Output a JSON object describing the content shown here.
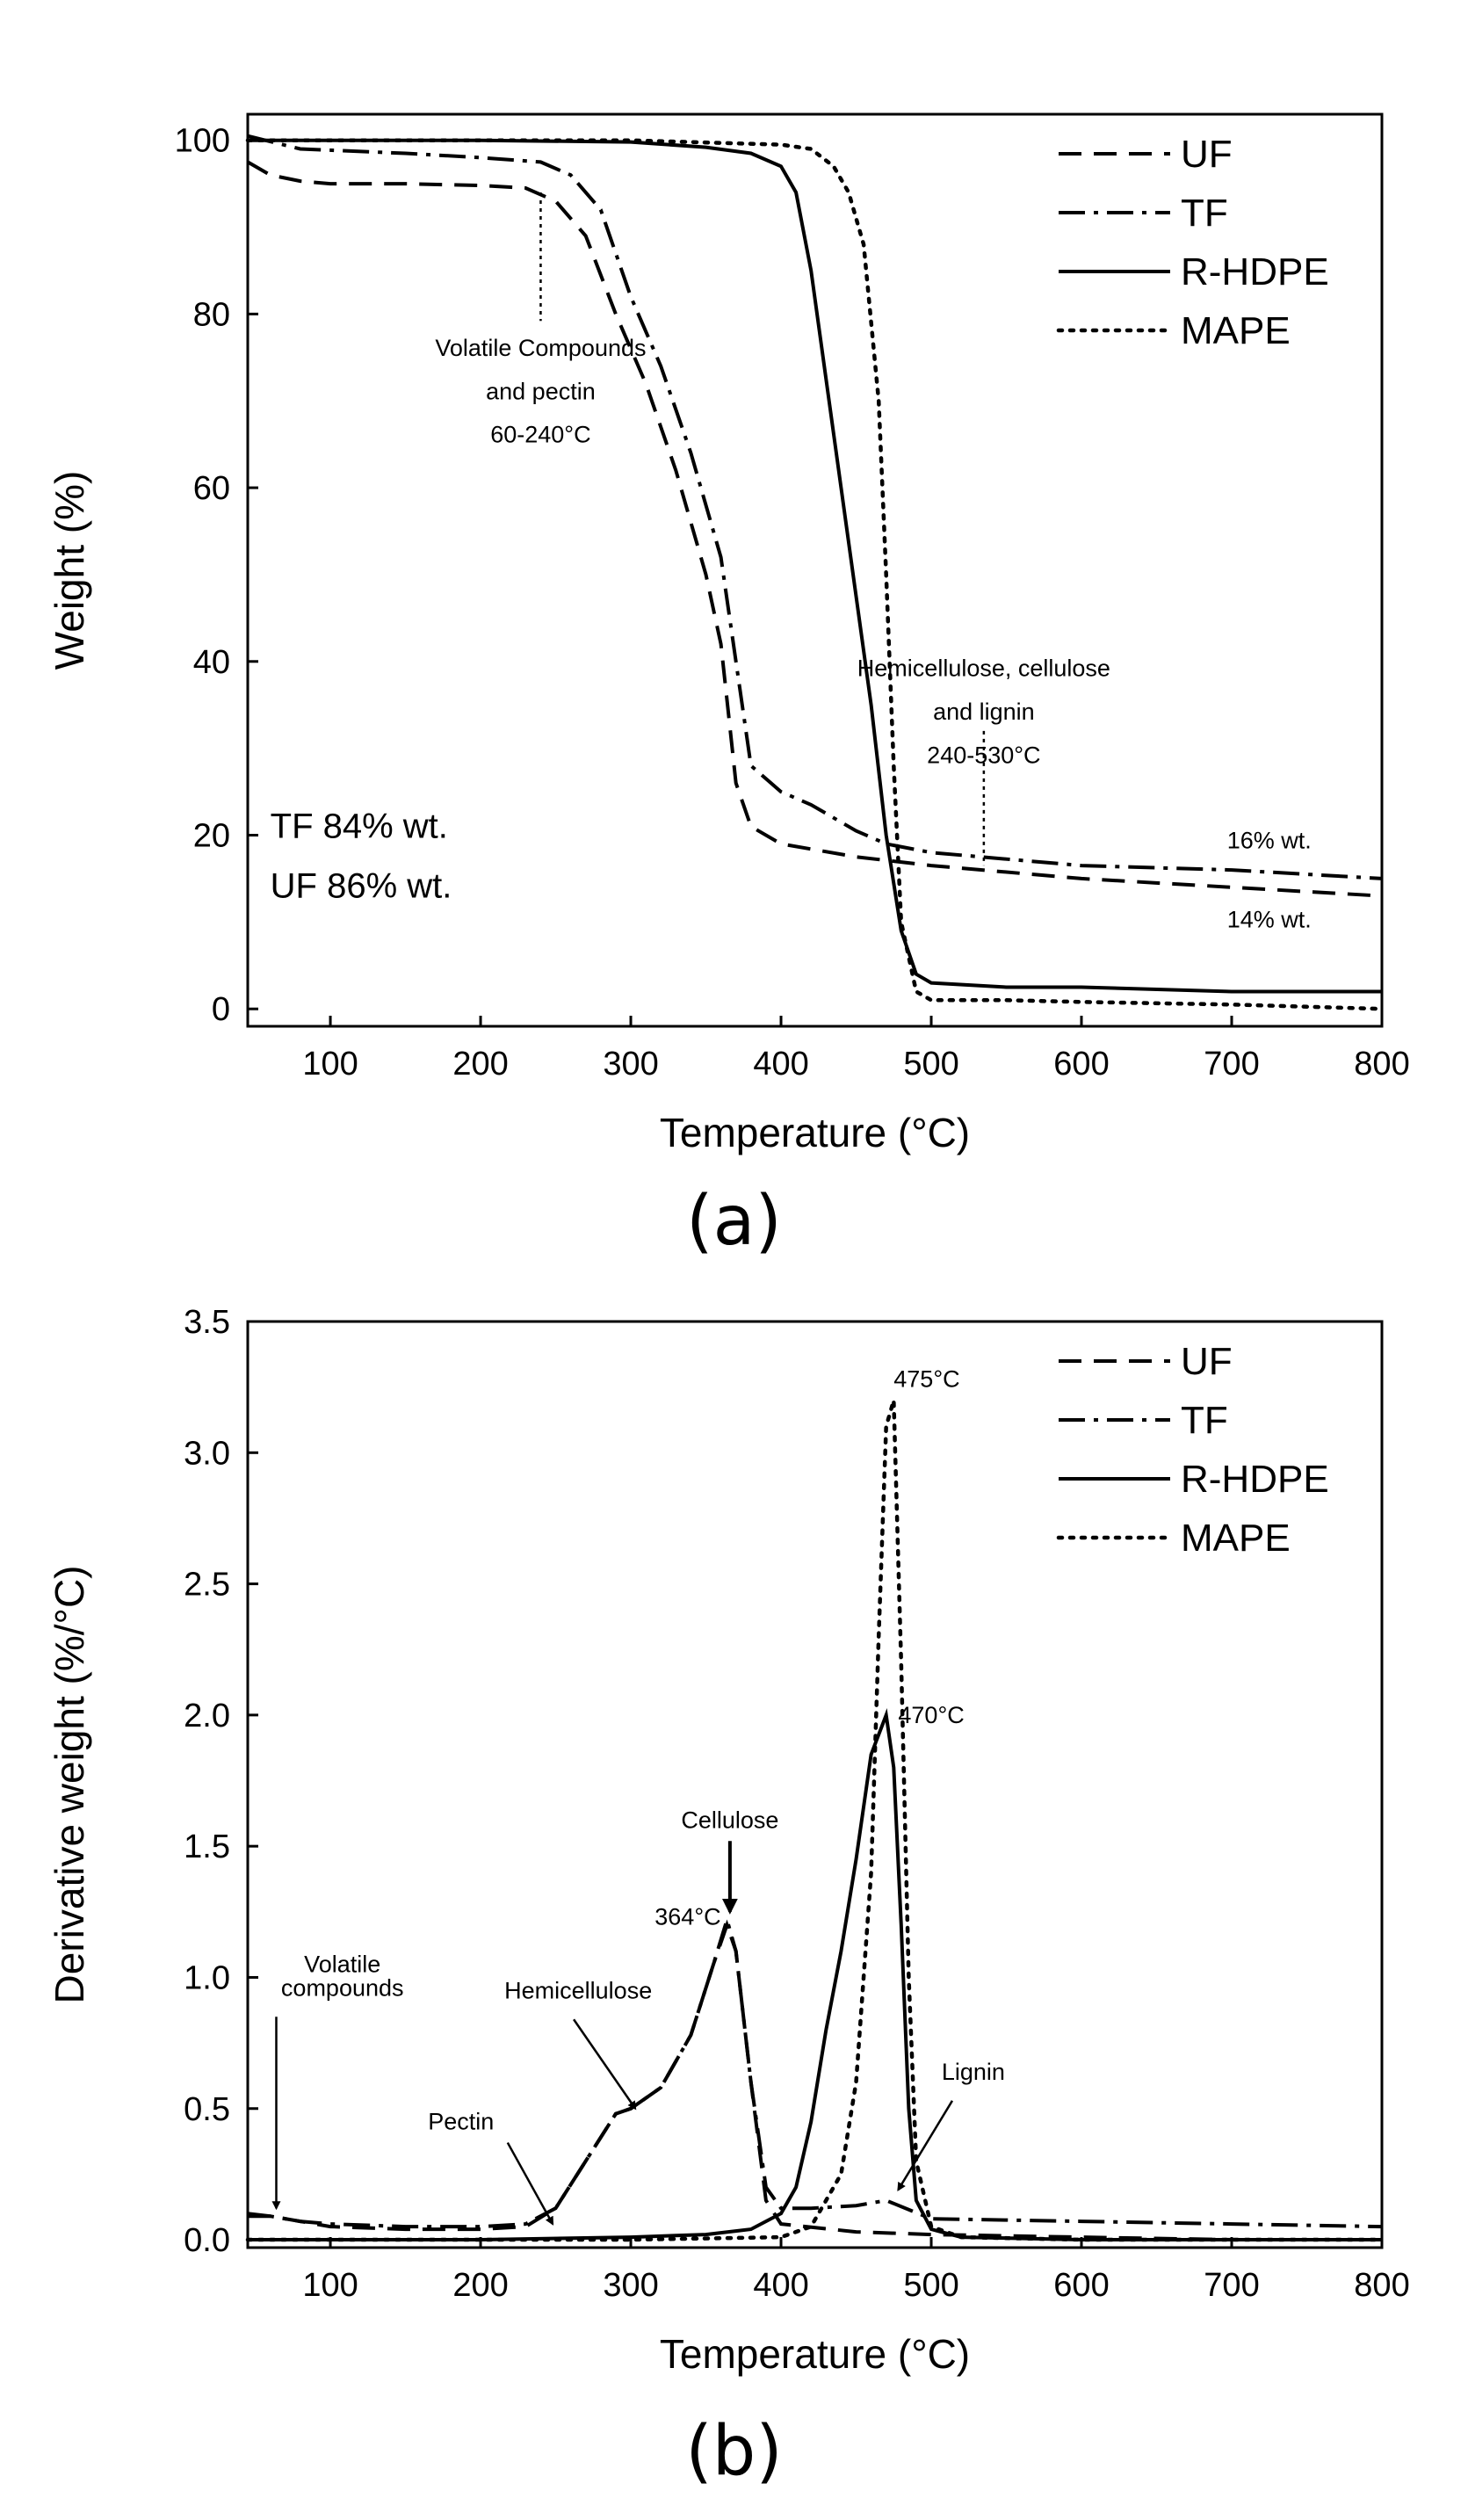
{
  "chart_data": [
    {
      "panel": "(a)",
      "type": "line",
      "title": "",
      "xlabel": "Temperature (°C)",
      "ylabel": "Weight (%)",
      "xlim": [
        45,
        800
      ],
      "ylim": [
        -2,
        103
      ],
      "xticks": [
        100,
        200,
        300,
        400,
        500,
        600,
        700,
        800
      ],
      "yticks": [
        0,
        20,
        40,
        60,
        80,
        100
      ],
      "legend_position": "top-right",
      "series": [
        {
          "name": "UF",
          "style": "dashed",
          "x": [
            45,
            60,
            80,
            100,
            150,
            200,
            230,
            250,
            270,
            290,
            310,
            330,
            350,
            360,
            365,
            370,
            380,
            400,
            450,
            500,
            600,
            700,
            800
          ],
          "y": [
            97.5,
            96,
            95.3,
            95,
            95,
            94.8,
            94.5,
            93,
            89,
            80,
            72,
            62,
            50,
            42,
            34,
            26,
            21,
            19,
            17.5,
            16.5,
            15,
            14,
            13
          ]
        },
        {
          "name": "TF",
          "style": "dash-dot",
          "x": [
            45,
            80,
            150,
            200,
            240,
            260,
            280,
            300,
            320,
            340,
            360,
            370,
            380,
            400,
            420,
            450,
            470,
            500,
            600,
            700,
            800
          ],
          "y": [
            100.5,
            99,
            98.5,
            98,
            97.5,
            96,
            92,
            82,
            74,
            64,
            52,
            40,
            28,
            25,
            23.5,
            20.5,
            19,
            18,
            16.5,
            16,
            15
          ]
        },
        {
          "name": "R-HDPE",
          "style": "solid",
          "x": [
            45,
            200,
            300,
            350,
            380,
            400,
            410,
            420,
            440,
            460,
            470,
            480,
            490,
            500,
            550,
            600,
            700,
            800
          ],
          "y": [
            100,
            100,
            99.8,
            99.2,
            98.5,
            97,
            94,
            85,
            60,
            35,
            20,
            9,
            4,
            3,
            2.5,
            2.5,
            2,
            2
          ]
        },
        {
          "name": "MAPE",
          "style": "dotted",
          "x": [
            45,
            300,
            400,
            420,
            435,
            445,
            455,
            465,
            470,
            475,
            480,
            490,
            500,
            550,
            600,
            700,
            800
          ],
          "y": [
            100,
            100,
            99.5,
            99,
            97,
            94,
            88,
            70,
            50,
            28,
            10,
            2,
            1,
            1,
            0.8,
            0.5,
            0
          ]
        }
      ],
      "annotations": [
        "Volatile Compounds",
        "and pectin",
        "60-240°C",
        "Hemicellulose, cellulose",
        "and lignin",
        "240-530°C",
        "16% wt.",
        "14% wt.",
        "TF 84% wt.",
        "UF 86% wt."
      ]
    },
    {
      "panel": "(b)",
      "type": "line",
      "title": "",
      "xlabel": "Temperature (°C)",
      "ylabel": "Derivative weight (%/°C)",
      "xlim": [
        45,
        800
      ],
      "ylim": [
        -0.03,
        3.5
      ],
      "xticks": [
        100,
        200,
        300,
        400,
        500,
        600,
        700,
        800
      ],
      "yticks": [
        0.0,
        0.5,
        1.0,
        1.5,
        2.0,
        2.5,
        3.0,
        3.5
      ],
      "legend_position": "top-right",
      "series": [
        {
          "name": "UF",
          "style": "dashed",
          "x": [
            45,
            60,
            80,
            100,
            150,
            200,
            230,
            250,
            270,
            290,
            300,
            320,
            340,
            355,
            364,
            370,
            380,
            390,
            400,
            450,
            500,
            600,
            700,
            800
          ],
          "y": [
            0.09,
            0.09,
            0.07,
            0.05,
            0.04,
            0.04,
            0.05,
            0.12,
            0.3,
            0.48,
            0.5,
            0.58,
            0.78,
            1.05,
            1.2,
            1.1,
            0.6,
            0.15,
            0.06,
            0.03,
            0.02,
            0.01,
            0.0,
            0.0
          ]
        },
        {
          "name": "TF",
          "style": "dash-dot",
          "x": [
            45,
            60,
            80,
            100,
            150,
            200,
            230,
            250,
            270,
            290,
            300,
            320,
            340,
            355,
            364,
            370,
            380,
            390,
            400,
            420,
            450,
            470,
            500,
            600,
            700,
            800
          ],
          "y": [
            0.1,
            0.09,
            0.07,
            0.06,
            0.05,
            0.05,
            0.06,
            0.12,
            0.3,
            0.48,
            0.5,
            0.58,
            0.78,
            1.05,
            1.22,
            1.1,
            0.6,
            0.2,
            0.12,
            0.12,
            0.13,
            0.15,
            0.08,
            0.07,
            0.06,
            0.05
          ]
        },
        {
          "name": "R-HDPE",
          "style": "solid",
          "x": [
            45,
            200,
            300,
            350,
            380,
            400,
            410,
            420,
            430,
            440,
            450,
            460,
            470,
            475,
            480,
            485,
            490,
            500,
            520,
            600,
            800
          ],
          "y": [
            0.0,
            0.0,
            0.01,
            0.02,
            0.04,
            0.1,
            0.2,
            0.45,
            0.8,
            1.1,
            1.45,
            1.85,
            2.0,
            1.8,
            1.2,
            0.5,
            0.15,
            0.04,
            0.01,
            0.0,
            0.0
          ]
        },
        {
          "name": "MAPE",
          "style": "dotted",
          "x": [
            45,
            300,
            400,
            420,
            440,
            450,
            460,
            465,
            470,
            475,
            480,
            485,
            490,
            500,
            520,
            600,
            800
          ],
          "y": [
            0.0,
            0.0,
            0.01,
            0.05,
            0.25,
            0.6,
            1.4,
            2.3,
            3.1,
            3.2,
            2.2,
            1.0,
            0.3,
            0.05,
            0.01,
            0.0,
            0.0
          ]
        }
      ],
      "annotations": [
        "475°C",
        "470°C",
        "Cellulose",
        "364°C",
        "Volatile",
        "compounds",
        "Hemicellulose",
        "Pectin",
        "Lignin"
      ]
    }
  ],
  "captions": {
    "a": "(a)",
    "b": "(b)"
  }
}
